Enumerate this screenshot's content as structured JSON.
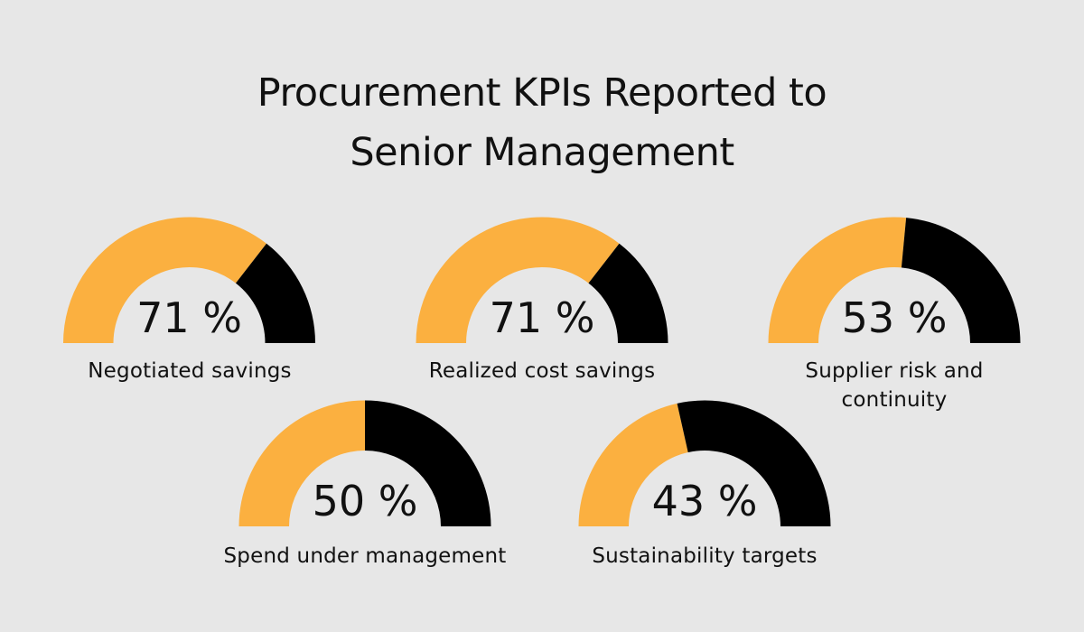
{
  "title_line1": "Procurement KPIs Reported to",
  "title_line2": "Senior Management",
  "colors": {
    "filled": "#fbb040",
    "remainder": "#000000",
    "background": "#e7e7e7"
  },
  "gauges": [
    {
      "label": "Negotiated savings",
      "value": 71,
      "display": "71 %"
    },
    {
      "label": "Realized cost savings",
      "value": 71,
      "display": "71 %"
    },
    {
      "label": "Supplier risk and continuity",
      "value": 53,
      "display": "53 %"
    },
    {
      "label": "Spend under management",
      "value": 50,
      "display": "50 %"
    },
    {
      "label": "Sustainability targets",
      "value": 43,
      "display": "43 %"
    }
  ],
  "chart_data": {
    "type": "gauge",
    "title": "Procurement KPIs Reported to Senior Management",
    "categories": [
      "Negotiated savings",
      "Realized cost savings",
      "Supplier risk and continuity",
      "Spend under management",
      "Sustainability targets"
    ],
    "values": [
      71,
      71,
      53,
      50,
      43
    ],
    "unit": "%",
    "range": [
      0,
      100
    ]
  }
}
